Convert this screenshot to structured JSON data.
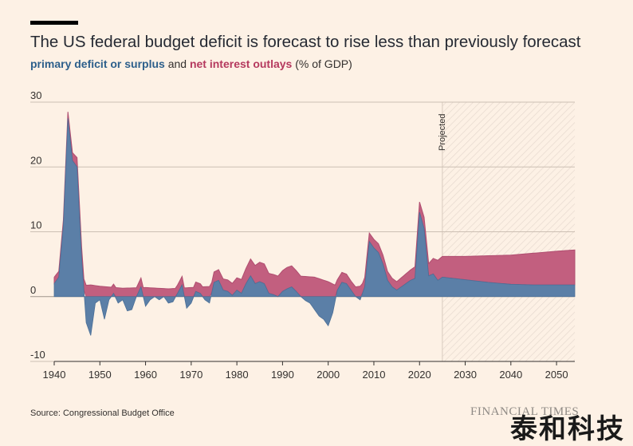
{
  "header": {
    "title": "The US federal budget deficit is forecast to rise less than previously forecast",
    "subtitle_blue": "primary deficit or surplus",
    "subtitle_and": " and ",
    "subtitle_red": "net interest outlays",
    "subtitle_tail": " (% of GDP)"
  },
  "footer": {
    "source": "Source: Congressional Budget Office",
    "logo": "FINANCIAL TIMES",
    "watermark": "泰和科技"
  },
  "colors": {
    "primary": "#5b7fa7",
    "interest": "#c25f7f",
    "grid": "#ccbfb3",
    "background": "#fdf1e5",
    "projected_hatch": "#e6d9ce"
  },
  "chart_data": {
    "type": "area",
    "projected_label": "Projected",
    "projected_start": 2025,
    "xlim": [
      1940,
      2054
    ],
    "ylim": [
      -10,
      30
    ],
    "x_ticks": [
      1940,
      1950,
      1960,
      1970,
      1980,
      1990,
      2000,
      2010,
      2020,
      2030,
      2040,
      2050
    ],
    "y_ticks": [
      30,
      20,
      10,
      0,
      -10
    ],
    "grid": true,
    "series": [
      {
        "name": "primary deficit or surplus",
        "points": [
          [
            1940,
            2.0
          ],
          [
            1941,
            3.0
          ],
          [
            1942,
            11.0
          ],
          [
            1943,
            27.5
          ],
          [
            1944,
            21.0
          ],
          [
            1945,
            20.0
          ],
          [
            1946,
            6.0
          ],
          [
            1947,
            -4.0
          ],
          [
            1948,
            -6.0
          ],
          [
            1949,
            -1.0
          ],
          [
            1950,
            -0.5
          ],
          [
            1951,
            -3.5
          ],
          [
            1952,
            -0.5
          ],
          [
            1953,
            0.5
          ],
          [
            1954,
            -1.0
          ],
          [
            1955,
            -0.5
          ],
          [
            1956,
            -2.2
          ],
          [
            1957,
            -2.0
          ],
          [
            1958,
            0.0
          ],
          [
            1959,
            1.5
          ],
          [
            1960,
            -1.5
          ],
          [
            1961,
            -0.5
          ],
          [
            1962,
            0.0
          ],
          [
            1963,
            -0.5
          ],
          [
            1964,
            0.0
          ],
          [
            1965,
            -1.0
          ],
          [
            1966,
            -0.8
          ],
          [
            1967,
            0.5
          ],
          [
            1968,
            1.8
          ],
          [
            1969,
            -1.8
          ],
          [
            1970,
            -1.0
          ],
          [
            1971,
            0.8
          ],
          [
            1972,
            0.5
          ],
          [
            1973,
            -0.5
          ],
          [
            1974,
            -1.0
          ],
          [
            1975,
            2.2
          ],
          [
            1976,
            2.5
          ],
          [
            1977,
            1.0
          ],
          [
            1978,
            0.8
          ],
          [
            1979,
            0.2
          ],
          [
            1980,
            1.0
          ],
          [
            1981,
            0.5
          ],
          [
            1982,
            2.0
          ],
          [
            1983,
            3.2
          ],
          [
            1984,
            2.0
          ],
          [
            1985,
            2.3
          ],
          [
            1986,
            2.0
          ],
          [
            1987,
            0.5
          ],
          [
            1988,
            0.3
          ],
          [
            1989,
            0.0
          ],
          [
            1990,
            0.8
          ],
          [
            1991,
            1.2
          ],
          [
            1992,
            1.5
          ],
          [
            1993,
            0.8
          ],
          [
            1994,
            0.0
          ],
          [
            1995,
            -0.6
          ],
          [
            1996,
            -1.0
          ],
          [
            1997,
            -2.0
          ],
          [
            1998,
            -3.0
          ],
          [
            1999,
            -3.5
          ],
          [
            2000,
            -4.5
          ],
          [
            2001,
            -2.5
          ],
          [
            2002,
            1.0
          ],
          [
            2003,
            2.2
          ],
          [
            2004,
            2.0
          ],
          [
            2005,
            1.0
          ],
          [
            2006,
            0.0
          ],
          [
            2007,
            -0.5
          ],
          [
            2008,
            1.5
          ],
          [
            2009,
            8.5
          ],
          [
            2010,
            7.5
          ],
          [
            2011,
            6.8
          ],
          [
            2012,
            5.0
          ],
          [
            2013,
            2.5
          ],
          [
            2014,
            1.5
          ],
          [
            2015,
            1.0
          ],
          [
            2016,
            1.5
          ],
          [
            2017,
            2.0
          ],
          [
            2018,
            2.5
          ],
          [
            2019,
            2.8
          ],
          [
            2020,
            13.0
          ],
          [
            2021,
            10.5
          ],
          [
            2022,
            3.2
          ],
          [
            2023,
            3.5
          ],
          [
            2024,
            2.5
          ],
          [
            2025,
            3.0
          ],
          [
            2030,
            2.6
          ],
          [
            2035,
            2.2
          ],
          [
            2040,
            1.9
          ],
          [
            2045,
            1.8
          ],
          [
            2050,
            1.8
          ],
          [
            2054,
            1.8
          ]
        ]
      },
      {
        "name": "net interest outlays",
        "points": [
          [
            1940,
            1.0
          ],
          [
            1942,
            0.8
          ],
          [
            1944,
            1.2
          ],
          [
            1946,
            1.7
          ],
          [
            1948,
            1.8
          ],
          [
            1950,
            1.6
          ],
          [
            1955,
            1.3
          ],
          [
            1960,
            1.4
          ],
          [
            1965,
            1.2
          ],
          [
            1970,
            1.4
          ],
          [
            1975,
            1.6
          ],
          [
            1980,
            1.9
          ],
          [
            1983,
            2.6
          ],
          [
            1985,
            3.0
          ],
          [
            1990,
            3.2
          ],
          [
            1991,
            3.3
          ],
          [
            1995,
            3.1
          ],
          [
            1997,
            3.0
          ],
          [
            2000,
            2.3
          ],
          [
            2002,
            1.6
          ],
          [
            2005,
            1.4
          ],
          [
            2007,
            1.6
          ],
          [
            2009,
            1.3
          ],
          [
            2012,
            1.4
          ],
          [
            2015,
            1.3
          ],
          [
            2018,
            1.6
          ],
          [
            2019,
            1.8
          ],
          [
            2020,
            1.6
          ],
          [
            2022,
            1.9
          ],
          [
            2023,
            2.4
          ],
          [
            2024,
            3.1
          ],
          [
            2025,
            3.2
          ],
          [
            2030,
            3.6
          ],
          [
            2035,
            4.1
          ],
          [
            2040,
            4.5
          ],
          [
            2045,
            4.9
          ],
          [
            2050,
            5.2
          ],
          [
            2054,
            5.4
          ]
        ]
      }
    ]
  }
}
